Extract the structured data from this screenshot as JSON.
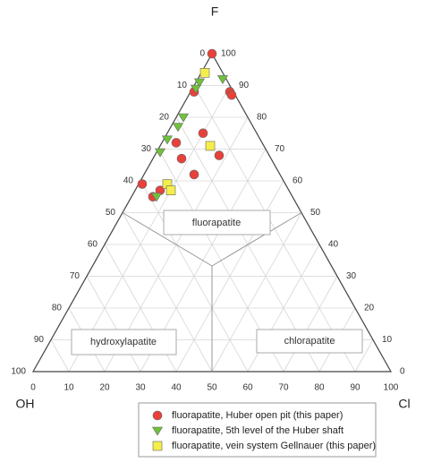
{
  "chart_data": {
    "type": "ternary",
    "top_label": "F",
    "left_label": "OH",
    "right_label": "Cl",
    "field_labels": [
      "fluorapatite",
      "hydroxylapatite",
      "chlorapatite"
    ],
    "f_ticks": [
      0,
      10,
      20,
      30,
      40,
      50,
      60,
      70,
      80,
      90,
      100
    ],
    "cl_ticks": [
      0,
      10,
      20,
      30,
      40,
      50,
      60,
      70,
      80,
      90,
      100
    ],
    "oh_ticks": [
      0,
      10,
      20,
      30,
      40,
      50,
      60,
      70,
      80,
      90,
      100
    ],
    "grid": true,
    "series": [
      {
        "name": "fluorapatite, Huber open pit (this paper)",
        "color": "#e8413a",
        "marker": "circle",
        "F": [
          100,
          88,
          88,
          87,
          72,
          75,
          67,
          68,
          62,
          59,
          57,
          55
        ],
        "Cl": [
          0,
          1,
          11,
          12,
          4,
          10,
          8,
          18,
          14,
          1,
          7,
          6
        ],
        "OH": [
          0,
          11,
          1,
          1,
          24,
          15,
          25,
          14,
          24,
          40,
          36,
          39
        ]
      },
      {
        "name": "fluorapatite, 5th level of the Huber shaft",
        "color": "#6fc23a",
        "marker": "triangle",
        "F": [
          91,
          89,
          92,
          80,
          77,
          73,
          69,
          55
        ],
        "Cl": [
          1,
          1,
          7,
          2,
          2,
          1,
          1,
          7
        ],
        "OH": [
          8,
          10,
          1,
          18,
          21,
          26,
          30,
          38
        ]
      },
      {
        "name": "fluorapatite, vein system Gellnauer (this paper)",
        "color": "#f4ee4a",
        "marker": "square",
        "F": [
          94,
          71,
          59,
          57
        ],
        "Cl": [
          1,
          14,
          8,
          10
        ],
        "OH": [
          5,
          15,
          33,
          33
        ]
      }
    ]
  }
}
